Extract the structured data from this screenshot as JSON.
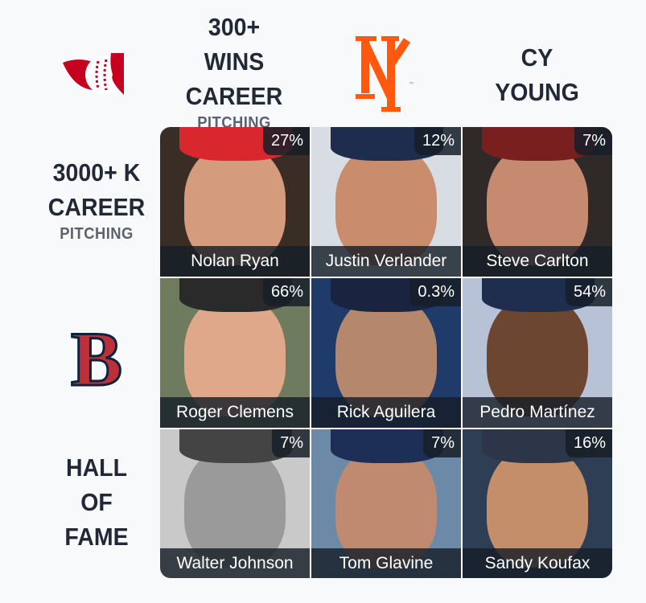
{
  "columns": [
    {
      "type": "logo",
      "team": "Cincinnati Reds",
      "icon": "reds-logo-icon",
      "color": "#c6011f"
    },
    {
      "type": "text",
      "lines": [
        "300+",
        "WINS",
        "CAREER"
      ],
      "sub": "PITCHING"
    },
    {
      "type": "logo",
      "team": "New York Mets",
      "icon": "mets-logo-icon",
      "color": "#ff5910",
      "tm": "™"
    },
    {
      "type": "text",
      "lines": [
        "CY",
        "YOUNG"
      ]
    }
  ],
  "rows": [
    {
      "type": "text",
      "lines": [
        "3000+ K",
        "CAREER"
      ],
      "sub": "PITCHING"
    },
    {
      "type": "logo",
      "team": "Boston Red Sox",
      "icon": "red-sox-logo-icon",
      "color": "#bd3039",
      "outline": "#0c2340"
    },
    {
      "type": "text",
      "lines": [
        "HALL",
        "OF",
        "FAME"
      ]
    }
  ],
  "cells": [
    {
      "name": "Nolan Ryan",
      "pct": "27%"
    },
    {
      "name": "Justin Verlander",
      "pct": "12%"
    },
    {
      "name": "Steve Carlton",
      "pct": "7%"
    },
    {
      "name": "Roger Clemens",
      "pct": "66%"
    },
    {
      "name": "Rick Aguilera",
      "pct": "0.3%"
    },
    {
      "name": "Pedro Martínez",
      "pct": "54%"
    },
    {
      "name": "Walter Johnson",
      "pct": "7%"
    },
    {
      "name": "Tom Glavine",
      "pct": "7%"
    },
    {
      "name": "Sandy Koufax",
      "pct": "16%"
    }
  ]
}
